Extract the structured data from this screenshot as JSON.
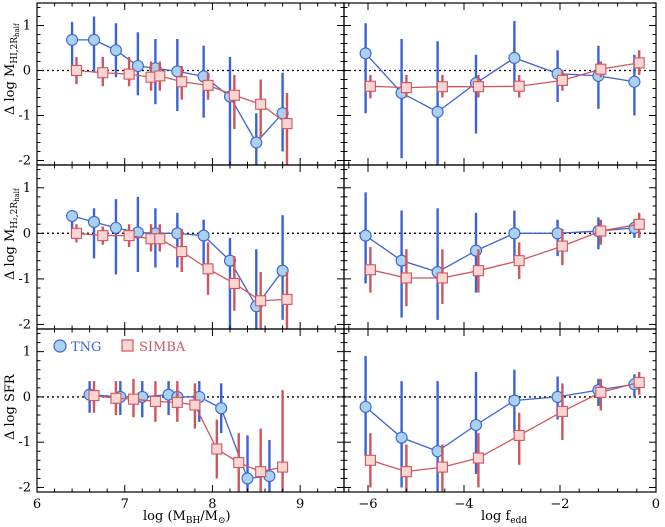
{
  "colors": {
    "tng_line": "#3b63d6",
    "tng_fill": "#a9d2ee",
    "simba_line": "#d2555c",
    "simba_fill": "#f7d6d3",
    "axis": "#000000"
  },
  "legend": {
    "tng": "TNG",
    "simba": "SIMBA"
  },
  "xlabels": {
    "left": "log (M",
    "left_sub": "BH",
    "left_mid": "/M",
    "left_sun": "⊙",
    "left_end": ")",
    "right": "log f",
    "right_sub": "edd"
  },
  "ylabels": [
    {
      "main": "Δ log M",
      "sub": "HI,2R",
      "subsub": "half"
    },
    {
      "main": "Δ log M",
      "sub": "H₂,2R",
      "subsub": "half"
    },
    {
      "main": "Δ log SFR",
      "sub": "",
      "subsub": ""
    }
  ],
  "chart_data": [
    {
      "type": "scatter",
      "row": 0,
      "col": "left",
      "xlim": [
        6,
        9.5
      ],
      "ylim": [
        -2.1,
        1.5
      ],
      "xticks": [
        6,
        7,
        8,
        9
      ],
      "yticks": [
        -2,
        -1,
        0,
        1
      ],
      "reference_line": 0,
      "series": [
        {
          "name": "TNG",
          "x": [
            6.4,
            6.65,
            6.9,
            7.15,
            7.35,
            7.6,
            7.9,
            8.2,
            8.5,
            8.8
          ],
          "y": [
            0.68,
            0.68,
            0.45,
            0.1,
            0.05,
            -0.02,
            -0.13,
            -0.58,
            -1.6,
            -0.95
          ],
          "yerr_low": [
            -0.05,
            -0.05,
            -0.15,
            -0.55,
            -0.75,
            -0.9,
            -1.05,
            -2.1,
            -2.1,
            -1.8
          ],
          "yerr_high": [
            1.08,
            1.2,
            1.05,
            0.85,
            0.7,
            0.7,
            0.55,
            0.3,
            -0.95,
            -0.05
          ]
        },
        {
          "name": "SIMBA",
          "x": [
            6.45,
            6.75,
            7.05,
            7.3,
            7.4,
            7.65,
            7.95,
            8.25,
            8.55,
            8.85
          ],
          "y": [
            0.0,
            -0.05,
            -0.08,
            -0.15,
            -0.12,
            -0.25,
            -0.33,
            -0.55,
            -0.75,
            -1.18
          ],
          "yerr_low": [
            -0.3,
            -0.35,
            -0.35,
            -0.45,
            -0.45,
            -0.65,
            -0.65,
            -1.3,
            -1.5,
            -2.1
          ],
          "yerr_high": [
            0.3,
            0.3,
            0.3,
            0.2,
            0.2,
            0.1,
            -0.05,
            -0.1,
            -0.2,
            -0.5
          ]
        }
      ]
    },
    {
      "type": "scatter",
      "row": 0,
      "col": "right",
      "xlim": [
        -6.5,
        0
      ],
      "ylim": [
        -2.1,
        1.5
      ],
      "xticks": [
        -6,
        -4,
        -2,
        0
      ],
      "yticks": [
        -2,
        -1,
        0,
        1
      ],
      "reference_line": 0,
      "series": [
        {
          "name": "TNG",
          "x": [
            -6.05,
            -5.3,
            -4.55,
            -3.75,
            -2.95,
            -2.05,
            -1.2,
            -0.45
          ],
          "y": [
            0.38,
            -0.5,
            -0.92,
            -0.28,
            0.28,
            -0.07,
            -0.12,
            -0.25
          ],
          "yerr_low": [
            -0.95,
            -1.95,
            -2.1,
            -1.4,
            -0.45,
            -0.7,
            -0.85,
            -1.0
          ],
          "yerr_high": [
            1.05,
            0.7,
            0.65,
            0.35,
            1.1,
            0.45,
            0.55,
            0.35
          ]
        },
        {
          "name": "SIMBA",
          "x": [
            -5.95,
            -5.2,
            -4.45,
            -3.7,
            -2.85,
            -1.95,
            -1.15,
            -0.35
          ],
          "y": [
            -0.35,
            -0.38,
            -0.36,
            -0.36,
            -0.35,
            -0.22,
            0.03,
            0.17
          ],
          "yerr_low": [
            -0.62,
            -0.6,
            -0.6,
            -0.6,
            -0.6,
            -0.45,
            -0.15,
            -0.1
          ],
          "yerr_high": [
            -0.1,
            -0.1,
            -0.1,
            -0.1,
            -0.1,
            0.0,
            0.2,
            0.45
          ]
        }
      ]
    },
    {
      "type": "scatter",
      "row": 1,
      "col": "left",
      "xlim": [
        6,
        9.5
      ],
      "ylim": [
        -2.1,
        1.5
      ],
      "xticks": [
        6,
        7,
        8,
        9
      ],
      "yticks": [
        -2,
        -1,
        0,
        1
      ],
      "reference_line": 0,
      "series": [
        {
          "name": "TNG",
          "x": [
            6.4,
            6.65,
            6.9,
            7.15,
            7.35,
            7.6,
            7.9,
            8.2,
            8.5,
            8.8
          ],
          "y": [
            0.38,
            0.25,
            0.12,
            0.02,
            0.0,
            0.0,
            -0.05,
            -0.6,
            -1.6,
            -0.82
          ],
          "yerr_low": [
            -0.1,
            -0.55,
            -0.9,
            -0.85,
            -0.75,
            -0.75,
            -0.75,
            -2.1,
            -2.1,
            -1.9
          ],
          "yerr_high": [
            0.45,
            0.55,
            0.75,
            0.8,
            0.55,
            0.45,
            0.3,
            -0.1,
            -0.35,
            0.4
          ]
        },
        {
          "name": "SIMBA",
          "x": [
            6.45,
            6.75,
            7.05,
            7.3,
            7.4,
            7.65,
            7.95,
            8.25,
            8.55,
            8.85
          ],
          "y": [
            0.0,
            -0.05,
            -0.05,
            -0.12,
            -0.12,
            -0.4,
            -0.78,
            -1.1,
            -1.48,
            -1.45
          ],
          "yerr_low": [
            -0.2,
            -0.25,
            -0.3,
            -0.4,
            -0.4,
            -0.85,
            -1.35,
            -1.7,
            -2.1,
            -2.1
          ],
          "yerr_high": [
            0.2,
            0.15,
            0.2,
            0.2,
            0.2,
            0.1,
            -0.2,
            -0.5,
            -0.85,
            -0.85
          ]
        }
      ]
    },
    {
      "type": "scatter",
      "row": 1,
      "col": "right",
      "xlim": [
        -6.5,
        0
      ],
      "ylim": [
        -2.1,
        1.5
      ],
      "xticks": [
        -6,
        -4,
        -2,
        0
      ],
      "yticks": [
        -2,
        -1,
        0,
        1
      ],
      "reference_line": 0,
      "series": [
        {
          "name": "TNG",
          "x": [
            -6.05,
            -5.3,
            -4.55,
            -3.75,
            -2.95,
            -2.05,
            -1.2,
            -0.45
          ],
          "y": [
            -0.05,
            -0.6,
            -0.85,
            -0.38,
            0.0,
            0.0,
            0.05,
            0.12
          ],
          "yerr_low": [
            -1.1,
            -1.85,
            -1.9,
            -1.3,
            -0.6,
            -0.5,
            -0.35,
            -0.1
          ],
          "yerr_high": [
            0.9,
            0.5,
            0.55,
            0.45,
            0.5,
            0.3,
            0.35,
            0.3
          ]
        },
        {
          "name": "SIMBA",
          "x": [
            -5.95,
            -5.2,
            -4.45,
            -3.7,
            -2.85,
            -1.95,
            -1.15,
            -0.35
          ],
          "y": [
            -0.8,
            -0.98,
            -0.98,
            -0.82,
            -0.6,
            -0.28,
            0.05,
            0.2
          ],
          "yerr_low": [
            -1.3,
            -1.6,
            -1.55,
            -1.3,
            -1.0,
            -0.7,
            -0.25,
            -0.1
          ],
          "yerr_high": [
            -0.3,
            -0.35,
            -0.35,
            -0.35,
            -0.2,
            0.1,
            0.3,
            0.45
          ]
        }
      ]
    },
    {
      "type": "scatter",
      "row": 2,
      "col": "left",
      "xlim": [
        6,
        9.5
      ],
      "ylim": [
        -2.1,
        1.5
      ],
      "xticks": [
        6,
        7,
        8,
        9
      ],
      "yticks": [
        -2,
        -1,
        0,
        1
      ],
      "reference_line": 0,
      "series": [
        {
          "name": "TNG",
          "x": [
            6.6,
            6.95,
            7.2,
            7.5,
            7.6,
            7.85,
            8.1,
            8.4,
            8.65
          ],
          "y": [
            0.05,
            0.0,
            0.0,
            0.05,
            0.0,
            0.0,
            -0.25,
            -1.8,
            -1.75
          ],
          "yerr_low": [
            -0.35,
            -0.4,
            -0.45,
            -0.4,
            -0.35,
            -0.55,
            -0.8,
            -2.1,
            -2.1
          ],
          "yerr_high": [
            0.35,
            0.35,
            0.35,
            0.35,
            0.2,
            0.35,
            0.3,
            -0.85,
            -0.95
          ]
        },
        {
          "name": "SIMBA",
          "x": [
            6.65,
            6.9,
            7.1,
            7.35,
            7.6,
            7.8,
            8.05,
            8.3,
            8.55,
            8.8
          ],
          "y": [
            0.03,
            -0.03,
            -0.05,
            -0.1,
            -0.12,
            -0.18,
            -1.15,
            -1.45,
            -1.65,
            -1.55
          ],
          "yerr_low": [
            -0.35,
            -0.4,
            -0.45,
            -0.55,
            -0.55,
            -0.7,
            -1.8,
            -2.1,
            -2.1,
            -2.1
          ],
          "yerr_high": [
            0.35,
            0.35,
            0.4,
            0.35,
            0.35,
            0.3,
            -0.5,
            -0.8,
            -0.7,
            0.15
          ]
        }
      ]
    },
    {
      "type": "scatter",
      "row": 2,
      "col": "right",
      "xlim": [
        -6.5,
        0
      ],
      "ylim": [
        -2.1,
        1.5
      ],
      "xticks": [
        -6,
        -4,
        -2,
        0
      ],
      "yticks": [
        -2,
        -1,
        0,
        1
      ],
      "reference_line": 0,
      "series": [
        {
          "name": "TNG",
          "x": [
            -6.05,
            -5.3,
            -4.55,
            -3.75,
            -2.95,
            -2.05,
            -1.2,
            -0.45
          ],
          "y": [
            -0.22,
            -0.9,
            -1.2,
            -0.62,
            -0.08,
            0.0,
            0.15,
            0.28
          ],
          "yerr_low": [
            -1.3,
            -2.0,
            -2.1,
            -1.7,
            -0.8,
            -0.5,
            -0.2,
            0.0
          ],
          "yerr_high": [
            0.9,
            0.35,
            0.35,
            0.55,
            0.6,
            0.45,
            0.4,
            0.5
          ]
        },
        {
          "name": "SIMBA",
          "x": [
            -5.95,
            -5.2,
            -4.45,
            -3.7,
            -2.85,
            -1.95,
            -1.15,
            -0.35
          ],
          "y": [
            -1.4,
            -1.65,
            -1.55,
            -1.35,
            -0.85,
            -0.32,
            0.1,
            0.32
          ],
          "yerr_low": [
            -2.0,
            -2.1,
            -2.1,
            -2.0,
            -1.5,
            -0.95,
            -0.3,
            0.05
          ],
          "yerr_high": [
            -0.8,
            -1.05,
            -1.05,
            -0.8,
            -0.35,
            0.3,
            0.4,
            0.55
          ]
        }
      ]
    }
  ]
}
